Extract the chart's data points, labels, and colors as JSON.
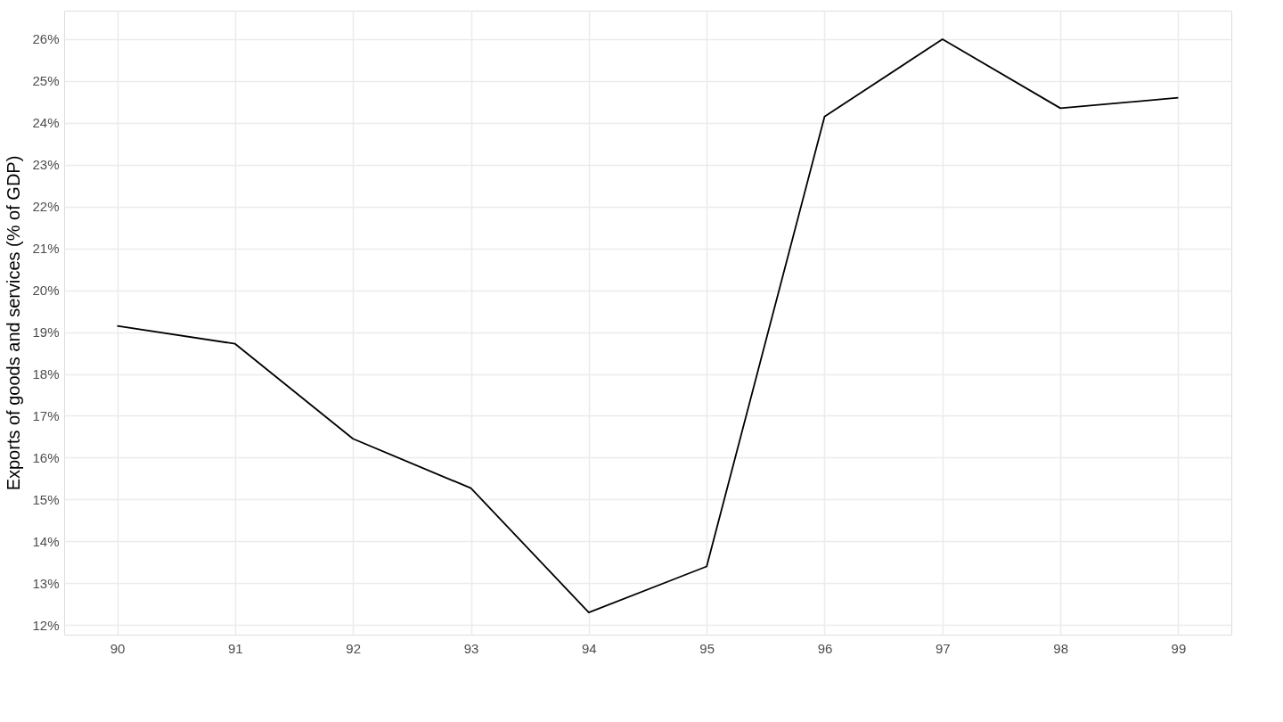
{
  "chart_data": {
    "type": "line",
    "ylabel": "Exports of goods and services (% of GDP)",
    "x": [
      90,
      91,
      92,
      93,
      94,
      95,
      96,
      97,
      98,
      99
    ],
    "series": [
      {
        "color": "#000000",
        "values": [
          19.15,
          18.72,
          16.45,
          15.27,
          12.3,
          13.4,
          24.15,
          26.0,
          24.35,
          24.6
        ]
      }
    ],
    "xlim": [
      89.55,
      99.45
    ],
    "xticks": [
      90,
      91,
      92,
      93,
      94,
      95,
      96,
      97,
      98,
      99
    ],
    "ylim": [
      11.77,
      26.68
    ],
    "yticks": [
      {
        "value": 12,
        "label": "12%"
      },
      {
        "value": 13,
        "label": "13%"
      },
      {
        "value": 14,
        "label": "14%"
      },
      {
        "value": 15,
        "label": "15%"
      },
      {
        "value": 16,
        "label": "16%"
      },
      {
        "value": 17,
        "label": "17%"
      },
      {
        "value": 18,
        "label": "18%"
      },
      {
        "value": 19,
        "label": "19%"
      },
      {
        "value": 20,
        "label": "20%"
      },
      {
        "value": 21,
        "label": "21%"
      },
      {
        "value": 22,
        "label": "22%"
      },
      {
        "value": 23,
        "label": "23%"
      },
      {
        "value": 24,
        "label": "24%"
      },
      {
        "value": 25,
        "label": "25%"
      },
      {
        "value": 26,
        "label": "26%"
      }
    ],
    "grid": true,
    "marker": "none",
    "line_style": "solid"
  }
}
